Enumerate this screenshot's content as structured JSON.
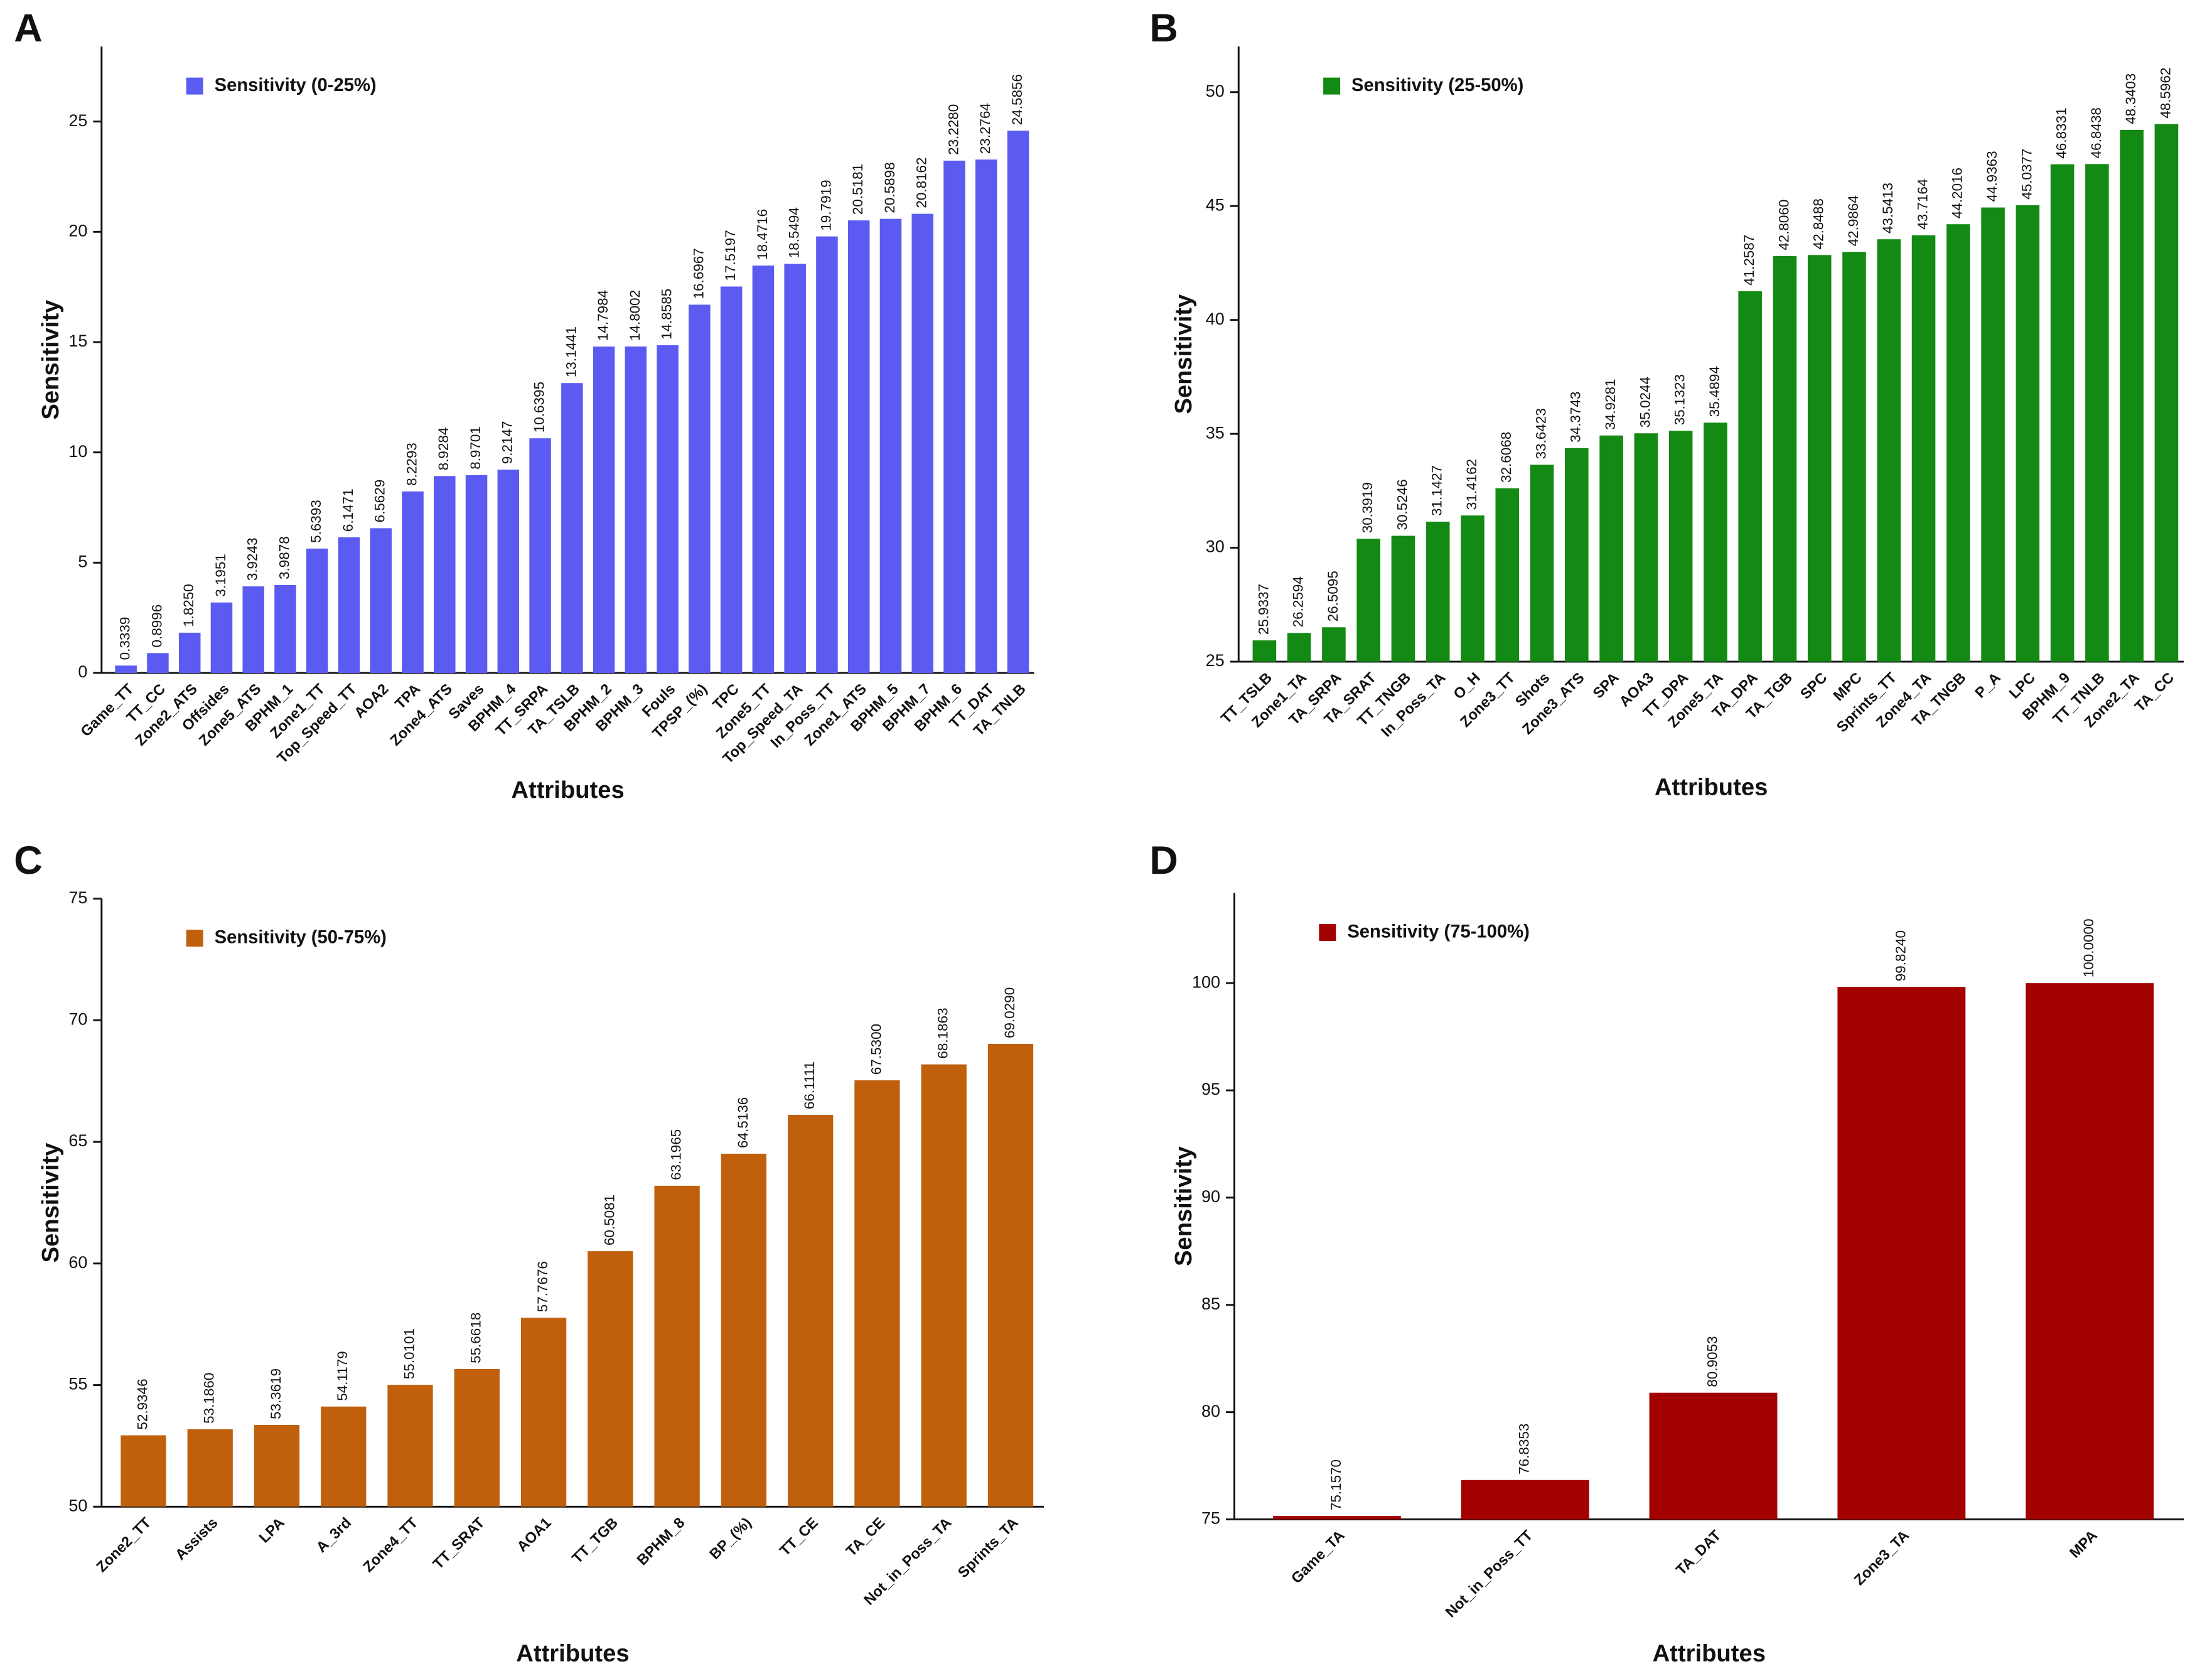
{
  "chart_data": [
    {
      "type": "bar",
      "panel_label": "A",
      "xlabel": "Attributes",
      "ylabel": "Sensitivity",
      "legend": "upper left",
      "categories": [
        "Game_TT",
        "TT_CC",
        "Zone2_ATS",
        "Offsides",
        "Zone5_ATS",
        "BPHM_1",
        "Zone1_TT",
        "Top_Speed_TT",
        "AOA2",
        "TPA",
        "Zone4_ATS",
        "Saves",
        "BPHM_4",
        "TT_SRPA",
        "TA_TSLB",
        "BPHM_2",
        "BPHM_3",
        "Fouls",
        "TPSP_(%)",
        "TPC",
        "Zone5_TT",
        "Top_Speed_TA",
        "In_Poss_TT",
        "Zone1_ATS",
        "BPHM_5",
        "BPHM_7",
        "BPHM_6",
        "TT_DAT",
        "TA_TNLB"
      ],
      "series": [
        {
          "name": "Sensitivity (0-25%)",
          "color": "#5b5bf2",
          "values": [
            0.3339,
            0.8996,
            1.825,
            3.1951,
            3.9243,
            3.9878,
            5.6393,
            6.1471,
            6.5629,
            8.2293,
            8.9284,
            8.9701,
            9.2147,
            10.6395,
            13.1441,
            14.7984,
            14.8002,
            14.8585,
            16.6967,
            17.5197,
            18.4716,
            18.5494,
            19.7919,
            20.5181,
            20.5898,
            20.8162,
            23.228,
            23.2764,
            24.5856
          ],
          "value_labels": [
            "0.3339",
            "0.8996",
            "1.8250",
            "3.1951",
            "3.9243",
            "3.9878",
            "5.6393",
            "6.1471",
            "6.5629",
            "8.2293",
            "8.9284",
            "8.9701",
            "9.2147",
            "10.6395",
            "13.1441",
            "14.7984",
            "14.8002",
            "14.8585",
            "16.6967",
            "17.5197",
            "18.4716",
            "18.5494",
            "19.7919",
            "20.5181",
            "20.5898",
            "20.8162",
            "23.2280",
            "23.2764",
            "24.5856"
          ]
        }
      ],
      "ylim": [
        0,
        28.4
      ],
      "yticks": [
        0,
        5,
        10,
        15,
        20,
        25
      ]
    },
    {
      "type": "bar",
      "panel_label": "B",
      "xlabel": "Attributes",
      "ylabel": "Sensitivity",
      "legend": "upper left",
      "categories": [
        "TT_TSLB",
        "Zone1_TA",
        "TA_SRPA",
        "TA_SRAT",
        "TT_TNGB",
        "In_Poss_TA",
        "O_H",
        "Zone3_TT",
        "Shots",
        "Zone3_ATS",
        "SPA",
        "AOA3",
        "TT_DPA",
        "Zone5_TA",
        "TA_DPA",
        "TA_TGB",
        "SPC",
        "MPC",
        "Sprints_TT",
        "Zone4_TA",
        "TA_TNGB",
        "P_A",
        "LPC",
        "BPHM_9",
        "TT_TNLB",
        "Zone2_TA",
        "TA_CC"
      ],
      "series": [
        {
          "name": "Sensitivity (25-50%)",
          "color": "#138a13",
          "values": [
            25.9337,
            26.2594,
            26.5095,
            30.3919,
            30.5246,
            31.1427,
            31.4162,
            32.6068,
            33.6423,
            34.3743,
            34.9281,
            35.0244,
            35.1323,
            35.4894,
            41.2587,
            42.806,
            42.8488,
            42.9864,
            43.5413,
            43.7164,
            44.2016,
            44.9363,
            45.0377,
            46.8331,
            46.8438,
            48.3403,
            48.5962
          ],
          "value_labels": [
            "25.9337",
            "26.2594",
            "26.5095",
            "30.3919",
            "30.5246",
            "31.1427",
            "31.4162",
            "32.6068",
            "33.6423",
            "34.3743",
            "34.9281",
            "35.0244",
            "35.1323",
            "35.4894",
            "41.2587",
            "42.8060",
            "42.8488",
            "42.9864",
            "43.5413",
            "43.7164",
            "44.2016",
            "44.9363",
            "45.0377",
            "46.8331",
            "46.8438",
            "48.3403",
            "48.5962"
          ]
        }
      ],
      "ylim": [
        25,
        52
      ],
      "yticks": [
        25,
        30,
        35,
        40,
        45,
        50
      ]
    },
    {
      "type": "bar",
      "panel_label": "C",
      "xlabel": "Attributes",
      "ylabel": "Sensitivity",
      "legend": "upper left",
      "categories": [
        "Zone2_TT",
        "Assists",
        "LPA",
        "A_3rd",
        "Zone4_TT",
        "TT_SRAT",
        "AOA1",
        "TT_TGB",
        "BPHM_8",
        "BP_(%)",
        "TT_CE",
        "TA_CE",
        "Not_in_Poss_TA",
        "Sprints_TA"
      ],
      "series": [
        {
          "name": "Sensitivity (50-75%)",
          "color": "#c0600c",
          "values": [
            52.9346,
            53.186,
            53.3619,
            54.1179,
            55.0101,
            55.6618,
            57.7676,
            60.5081,
            63.1965,
            64.5136,
            66.1111,
            67.53,
            68.1863,
            69.029
          ],
          "value_labels": [
            "52.9346",
            "53.1860",
            "53.3619",
            "54.1179",
            "55.0101",
            "55.6618",
            "57.7676",
            "60.5081",
            "63.1965",
            "64.5136",
            "66.1111",
            "67.5300",
            "68.1863",
            "69.0290"
          ]
        }
      ],
      "ylim": [
        50,
        75
      ],
      "yticks": [
        50,
        55,
        60,
        65,
        70,
        75
      ]
    },
    {
      "type": "bar",
      "panel_label": "D",
      "xlabel": "Attributes",
      "ylabel": "Sensitivity",
      "legend": "upper left",
      "categories": [
        "Game_TA",
        "Not_in_Poss_TT",
        "TA_DAT",
        "Zone3_TA",
        "MPA"
      ],
      "series": [
        {
          "name": "Sensitivity (75-100%)",
          "color": "#a30000",
          "values": [
            75.157,
            76.8353,
            80.9053,
            99.824,
            100
          ],
          "value_labels": [
            "75.1570",
            "76.8353",
            "80.9053",
            "99.8240",
            "100.0000"
          ]
        }
      ],
      "ylim": [
        75,
        104.2
      ],
      "yticks": [
        75,
        80,
        85,
        90,
        95,
        100
      ]
    }
  ]
}
